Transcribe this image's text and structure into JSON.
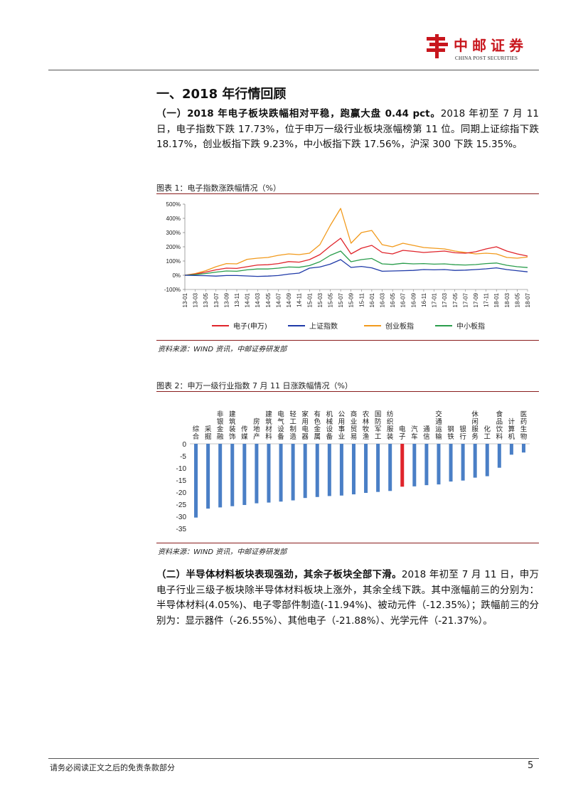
{
  "header": {
    "brand_cn": "中邮证券",
    "brand_en": "CHINA POST SECURITIES"
  },
  "section_title": "一、2018 年行情回顾",
  "para1": {
    "lead": "（一）2018 年电子板块跌幅相对平稳，跑赢大盘 0.44 pct。",
    "body": "2018 年初至 7 月 11 日，电子指数下跌 17.73%，位于申万一级行业板块涨幅榜第 11 位。同期上证综指下跌 18.17%，创业板指下跌 9.23%，中小板指下跌 17.56%，沪深 300 下跌 15.35%。"
  },
  "figure1": {
    "title": "图表 1：电子指数涨跌幅情况（%）",
    "source": "资料来源：WIND 资讯，中邮证券研发部",
    "chart_data": {
      "type": "line",
      "y_ticks": [
        "500%",
        "400%",
        "300%",
        "200%",
        "100%",
        "0%",
        "-100%"
      ],
      "ylim": [
        -100,
        500
      ],
      "x_ticks": [
        "13-01",
        "13-03",
        "13-05",
        "13-07",
        "13-09",
        "13-11",
        "14-01",
        "14-03",
        "14-05",
        "14-07",
        "14-09",
        "14-11",
        "15-01",
        "15-03",
        "15-05",
        "15-07",
        "15-09",
        "15-11",
        "16-01",
        "16-03",
        "16-05",
        "16-07",
        "16-09",
        "16-11",
        "17-01",
        "17-03",
        "17-05",
        "17-07",
        "17-09",
        "17-11",
        "18-01",
        "18-03",
        "18-05",
        "18-07"
      ],
      "series": [
        {
          "name": "电子(申万)",
          "color": "#e0242b",
          "values": [
            0,
            8,
            22,
            38,
            50,
            48,
            60,
            72,
            74,
            82,
            96,
            92,
            110,
            145,
            205,
            260,
            150,
            190,
            210,
            160,
            150,
            175,
            168,
            160,
            165,
            170,
            158,
            155,
            165,
            185,
            200,
            170,
            150,
            135
          ]
        },
        {
          "name": "上证指数",
          "color": "#1f3aa8",
          "values": [
            0,
            -2,
            -3,
            -6,
            -2,
            -2,
            -5,
            -8,
            -6,
            -2,
            8,
            15,
            50,
            58,
            78,
            110,
            55,
            62,
            52,
            28,
            30,
            32,
            34,
            40,
            38,
            40,
            34,
            36,
            40,
            45,
            52,
            40,
            32,
            24
          ]
        },
        {
          "name": "创业板指",
          "color": "#f29a1c",
          "values": [
            0,
            12,
            32,
            60,
            82,
            80,
            112,
            120,
            125,
            140,
            150,
            145,
            155,
            215,
            350,
            470,
            225,
            300,
            315,
            215,
            200,
            225,
            210,
            195,
            190,
            185,
            170,
            160,
            150,
            155,
            150,
            125,
            120,
            128
          ]
        },
        {
          "name": "中小板指",
          "color": "#2a9d4c",
          "values": [
            0,
            4,
            12,
            22,
            30,
            28,
            38,
            44,
            44,
            50,
            58,
            56,
            68,
            95,
            140,
            170,
            95,
            110,
            118,
            80,
            76,
            84,
            80,
            82,
            78,
            80,
            74,
            72,
            75,
            82,
            86,
            70,
            60,
            54
          ]
        }
      ]
    }
  },
  "figure2": {
    "title": "图表 2：申万一级行业指数 7 月 11 日涨跌幅情况（%）",
    "source": "资料来源：WIND 资讯，中邮证券研发部",
    "chart_data": {
      "type": "bar",
      "categories": [
        "综合",
        "采掘",
        "非银金融",
        "建筑装饰",
        "传媒",
        "房地产",
        "建筑材料",
        "电气设备",
        "轻工制造",
        "家用电器",
        "有色金属",
        "机械设备",
        "公用事业",
        "商业贸易",
        "农林牧渔",
        "国防军工",
        "纺织服装",
        "电子",
        "汽车",
        "通信",
        "交通运输",
        "钢铁",
        "银行",
        "休闲服务",
        "化工",
        "食品饮料",
        "计算机",
        "医药生物"
      ],
      "values": [
        -30.5,
        -26.8,
        -26.3,
        -25.8,
        -25.3,
        -24.6,
        -24.3,
        -23.9,
        -23.4,
        -22.4,
        -22.0,
        -21.6,
        -21.4,
        -20.9,
        -20.3,
        -19.9,
        -19.5,
        -17.73,
        -17.6,
        -17.1,
        -16.8,
        -15.6,
        -15.2,
        -14.0,
        -13.4,
        -9.9,
        -4.5,
        -3.6
      ],
      "y_ticks": [
        "0",
        "-5",
        "-10",
        "-15",
        "-20",
        "-25",
        "-30",
        "-35"
      ],
      "ylim": [
        -35,
        0
      ],
      "bar_color": "#4a7fc6",
      "highlight_index": 17,
      "highlight_color": "#e0242b"
    }
  },
  "para2": {
    "lead": "（二）半导体材料板块表现强劲，其余子板块全部下滑。",
    "body": "2018 年初至 7 月 11 日，申万电子行业三级子板块除半导体材料板块上涨外，其余全线下跌。其中涨幅前三的分别为：半导体材料(4.05%)、电子零部件制造(-11.94%)、被动元件（-12.35%）；跌幅前三的分别为：显示器件（-26.55%）、其他电子（-21.88%）、光学元件（-21.37%）。"
  },
  "footer": {
    "disclaimer": "请务必阅读正文之后的免责条款部分",
    "page": "5"
  }
}
